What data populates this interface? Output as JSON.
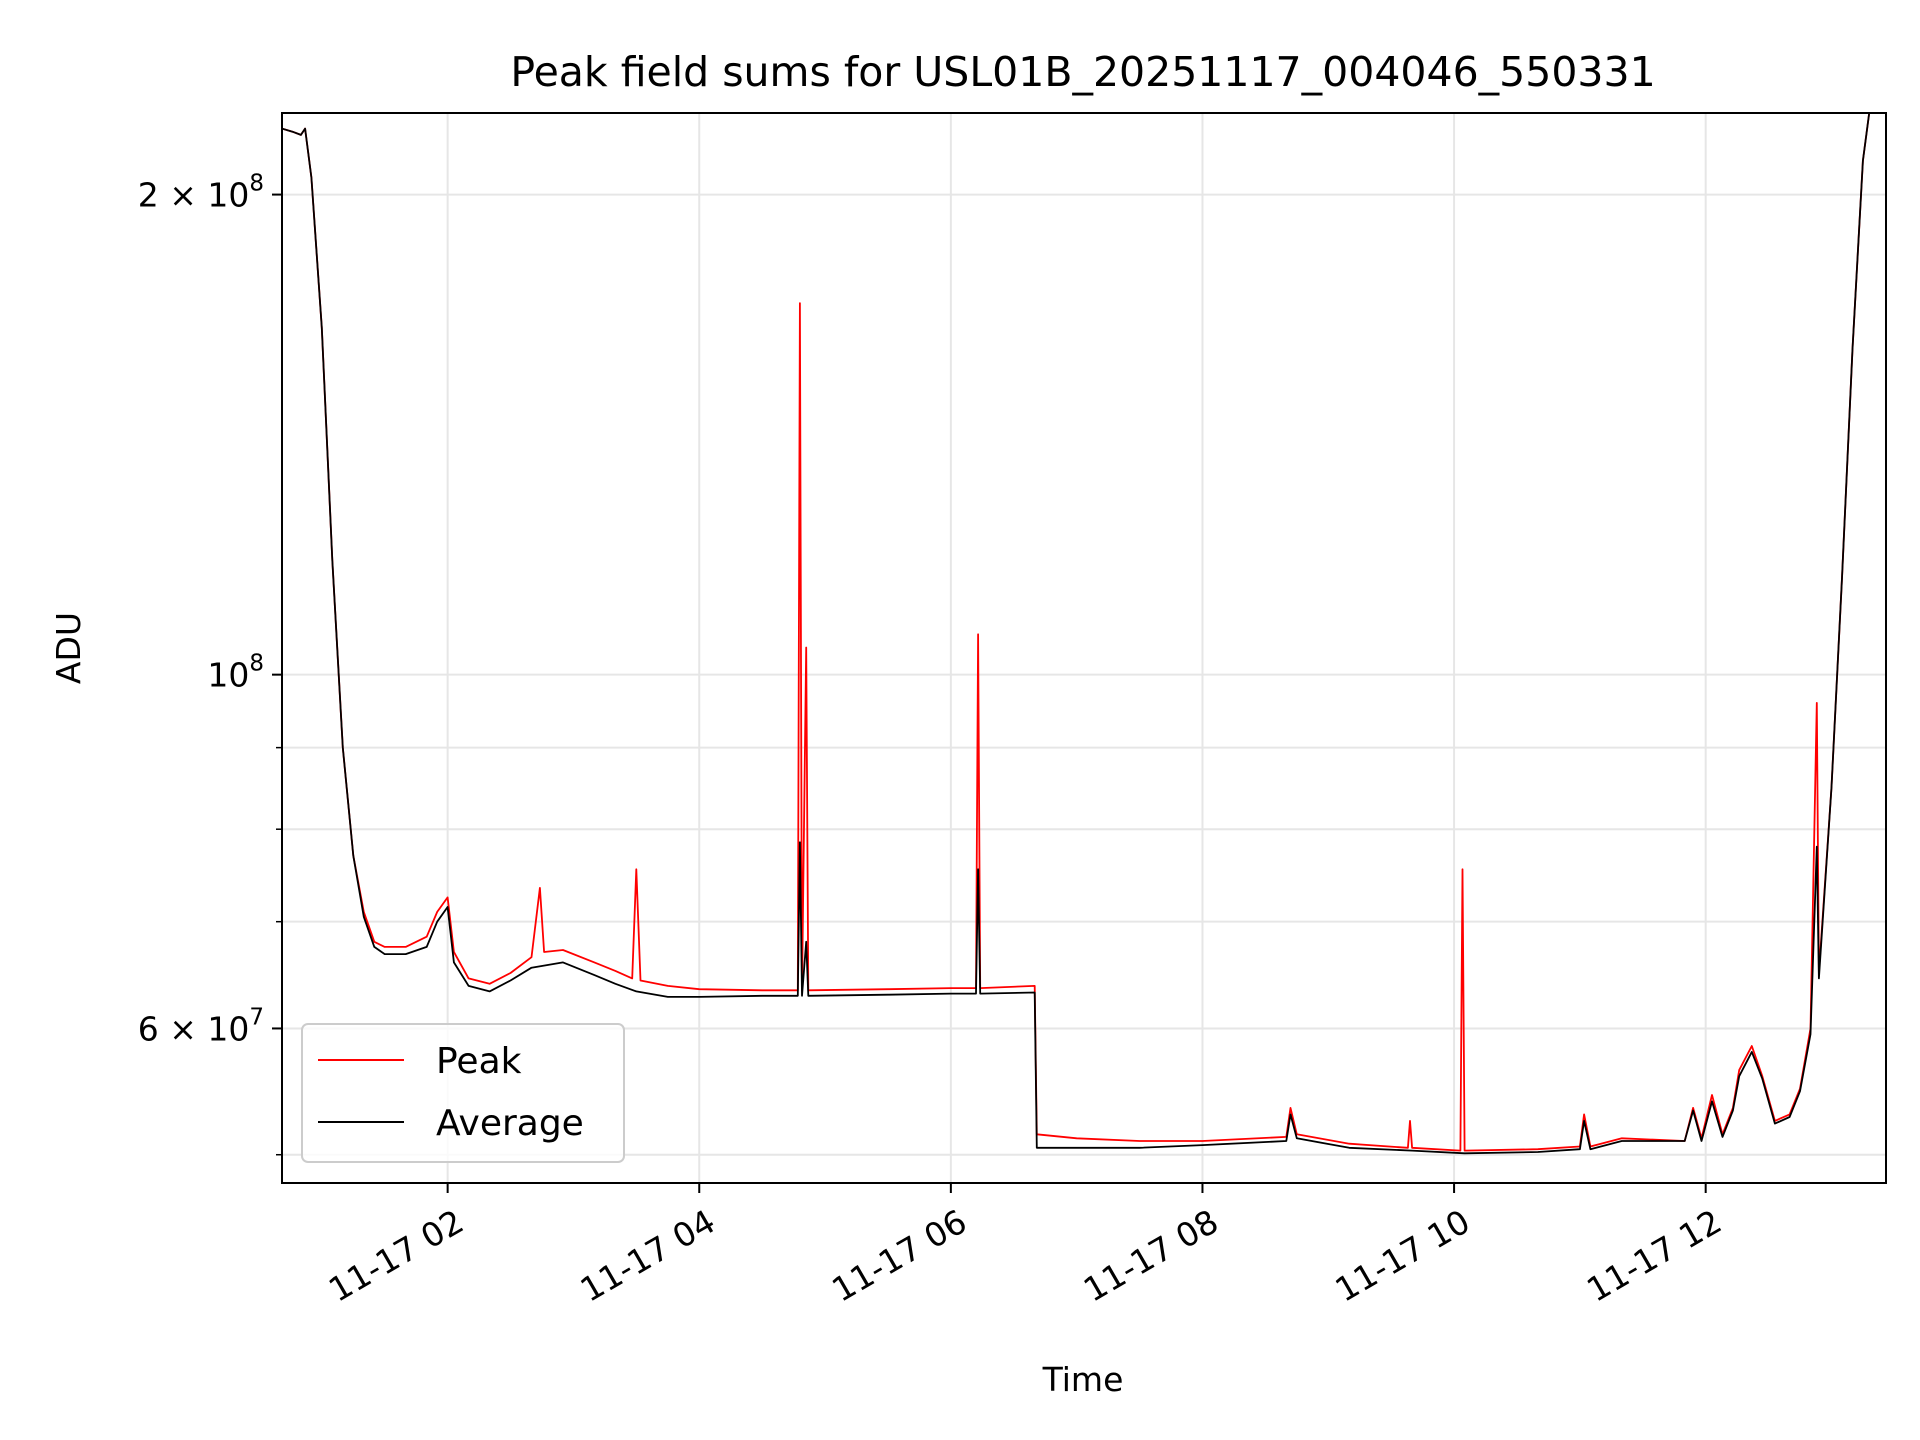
{
  "chart_data": {
    "type": "line",
    "title": "Peak field sums for USL01B_20251117_004046_550331",
    "xlabel": "Time",
    "ylabel": "ADU",
    "y_scale": "log",
    "grid": true,
    "legend_position": "lower-left",
    "xlim": [
      "2025-11-17T00:41",
      "2025-11-17T13:26"
    ],
    "ylim": [
      48000000,
      225000000
    ],
    "x_ticks": [
      {
        "t": "2025-11-17T02:00",
        "label": "11-17 02"
      },
      {
        "t": "2025-11-17T04:00",
        "label": "11-17 04"
      },
      {
        "t": "2025-11-17T06:00",
        "label": "11-17 06"
      },
      {
        "t": "2025-11-17T08:00",
        "label": "11-17 08"
      },
      {
        "t": "2025-11-17T10:00",
        "label": "11-17 10"
      },
      {
        "t": "2025-11-17T12:00",
        "label": "11-17 12"
      }
    ],
    "y_ticks": [
      {
        "v": 60000000,
        "mantissa": "6",
        "exp": "7"
      },
      {
        "v": 100000000,
        "mantissa": "",
        "exp": "8"
      },
      {
        "v": 200000000,
        "mantissa": "2",
        "exp": "8"
      }
    ],
    "y_minor_ticks": [
      50000000,
      70000000,
      80000000,
      90000000
    ],
    "series": [
      {
        "name": "Peak",
        "color": "#ff0000",
        "points": [
          [
            "2025-11-17T00:41",
            220000000
          ],
          [
            "2025-11-17T00:46",
            219000000
          ],
          [
            "2025-11-17T00:50",
            218000000
          ],
          [
            "2025-11-17T00:52",
            220000000
          ],
          [
            "2025-11-17T00:55",
            205000000
          ],
          [
            "2025-11-17T01:00",
            165000000
          ],
          [
            "2025-11-17T01:03",
            135000000
          ],
          [
            "2025-11-17T01:05",
            118000000
          ],
          [
            "2025-11-17T01:10",
            90000000
          ],
          [
            "2025-11-17T01:15",
            77000000
          ],
          [
            "2025-11-17T01:20",
            71000000
          ],
          [
            "2025-11-17T01:25",
            68000000
          ],
          [
            "2025-11-17T01:30",
            67500000
          ],
          [
            "2025-11-17T01:40",
            67500000
          ],
          [
            "2025-11-17T01:50",
            68500000
          ],
          [
            "2025-11-17T01:55",
            71000000
          ],
          [
            "2025-11-17T02:00",
            72500000
          ],
          [
            "2025-11-17T02:03",
            67000000
          ],
          [
            "2025-11-17T02:10",
            64500000
          ],
          [
            "2025-11-17T02:20",
            64000000
          ],
          [
            "2025-11-17T02:30",
            65000000
          ],
          [
            "2025-11-17T02:40",
            66500000
          ],
          [
            "2025-11-17T02:44",
            73500000
          ],
          [
            "2025-11-17T02:46",
            67000000
          ],
          [
            "2025-11-17T02:55",
            67200000
          ],
          [
            "2025-11-17T03:10",
            66000000
          ],
          [
            "2025-11-17T03:20",
            65200000
          ],
          [
            "2025-11-17T03:28",
            64500000
          ],
          [
            "2025-11-17T03:30",
            75500000
          ],
          [
            "2025-11-17T03:32",
            64300000
          ],
          [
            "2025-11-17T03:45",
            63800000
          ],
          [
            "2025-11-17T04:00",
            63500000
          ],
          [
            "2025-11-17T04:30",
            63400000
          ],
          [
            "2025-11-17T04:47",
            63400000
          ],
          [
            "2025-11-17T04:48",
            171000000
          ],
          [
            "2025-11-17T04:49",
            63400000
          ],
          [
            "2025-11-17T04:51",
            104000000
          ],
          [
            "2025-11-17T04:52",
            63400000
          ],
          [
            "2025-11-17T05:30",
            63500000
          ],
          [
            "2025-11-17T06:00",
            63600000
          ],
          [
            "2025-11-17T06:12",
            63600000
          ],
          [
            "2025-11-17T06:13",
            106000000
          ],
          [
            "2025-11-17T06:14",
            63600000
          ],
          [
            "2025-11-17T06:40",
            63800000
          ],
          [
            "2025-11-17T06:41",
            51500000
          ],
          [
            "2025-11-17T07:00",
            51200000
          ],
          [
            "2025-11-17T07:30",
            51000000
          ],
          [
            "2025-11-17T08:00",
            51000000
          ],
          [
            "2025-11-17T08:40",
            51300000
          ],
          [
            "2025-11-17T08:42",
            53500000
          ],
          [
            "2025-11-17T08:45",
            51500000
          ],
          [
            "2025-11-17T09:10",
            50800000
          ],
          [
            "2025-11-17T09:38",
            50500000
          ],
          [
            "2025-11-17T09:39",
            52500000
          ],
          [
            "2025-11-17T09:40",
            50500000
          ],
          [
            "2025-11-17T10:03",
            50300000
          ],
          [
            "2025-11-17T10:04",
            75500000
          ],
          [
            "2025-11-17T10:05",
            50300000
          ],
          [
            "2025-11-17T10:40",
            50400000
          ],
          [
            "2025-11-17T11:00",
            50600000
          ],
          [
            "2025-11-17T11:02",
            53000000
          ],
          [
            "2025-11-17T11:05",
            50600000
          ],
          [
            "2025-11-17T11:20",
            51200000
          ],
          [
            "2025-11-17T11:50",
            51000000
          ],
          [
            "2025-11-17T11:54",
            53500000
          ],
          [
            "2025-11-17T11:58",
            51200000
          ],
          [
            "2025-11-17T12:03",
            54500000
          ],
          [
            "2025-11-17T12:08",
            51500000
          ],
          [
            "2025-11-17T12:13",
            53500000
          ],
          [
            "2025-11-17T12:16",
            56500000
          ],
          [
            "2025-11-17T12:22",
            58500000
          ],
          [
            "2025-11-17T12:27",
            56000000
          ],
          [
            "2025-11-17T12:33",
            52500000
          ],
          [
            "2025-11-17T12:40",
            53000000
          ],
          [
            "2025-11-17T12:45",
            55000000
          ],
          [
            "2025-11-17T12:50",
            60000000
          ],
          [
            "2025-11-17T12:53",
            96000000
          ],
          [
            "2025-11-17T12:54",
            65000000
          ],
          [
            "2025-11-17T13:00",
            85000000
          ],
          [
            "2025-11-17T13:05",
            115000000
          ],
          [
            "2025-11-17T13:10",
            160000000
          ],
          [
            "2025-11-17T13:15",
            210000000
          ],
          [
            "2025-11-17T13:18",
            225000000
          ]
        ]
      },
      {
        "name": "Average",
        "color": "#000000",
        "points": [
          [
            "2025-11-17T00:41",
            220000000
          ],
          [
            "2025-11-17T00:46",
            219000000
          ],
          [
            "2025-11-17T00:50",
            218000000
          ],
          [
            "2025-11-17T00:52",
            220000000
          ],
          [
            "2025-11-17T00:55",
            205000000
          ],
          [
            "2025-11-17T01:00",
            165000000
          ],
          [
            "2025-11-17T01:03",
            135000000
          ],
          [
            "2025-11-17T01:05",
            118000000
          ],
          [
            "2025-11-17T01:10",
            90000000
          ],
          [
            "2025-11-17T01:15",
            77000000
          ],
          [
            "2025-11-17T01:20",
            70500000
          ],
          [
            "2025-11-17T01:25",
            67500000
          ],
          [
            "2025-11-17T01:30",
            66800000
          ],
          [
            "2025-11-17T01:40",
            66800000
          ],
          [
            "2025-11-17T01:50",
            67500000
          ],
          [
            "2025-11-17T01:55",
            70000000
          ],
          [
            "2025-11-17T02:00",
            71500000
          ],
          [
            "2025-11-17T02:03",
            66000000
          ],
          [
            "2025-11-17T02:10",
            63800000
          ],
          [
            "2025-11-17T02:20",
            63300000
          ],
          [
            "2025-11-17T02:30",
            64300000
          ],
          [
            "2025-11-17T02:40",
            65500000
          ],
          [
            "2025-11-17T02:55",
            66000000
          ],
          [
            "2025-11-17T03:10",
            64800000
          ],
          [
            "2025-11-17T03:20",
            64000000
          ],
          [
            "2025-11-17T03:30",
            63300000
          ],
          [
            "2025-11-17T03:45",
            62800000
          ],
          [
            "2025-11-17T04:00",
            62800000
          ],
          [
            "2025-11-17T04:30",
            62900000
          ],
          [
            "2025-11-17T04:47",
            62900000
          ],
          [
            "2025-11-17T04:48",
            78500000
          ],
          [
            "2025-11-17T04:49",
            62900000
          ],
          [
            "2025-11-17T04:51",
            68000000
          ],
          [
            "2025-11-17T04:52",
            62900000
          ],
          [
            "2025-11-17T05:30",
            63000000
          ],
          [
            "2025-11-17T06:00",
            63100000
          ],
          [
            "2025-11-17T06:12",
            63100000
          ],
          [
            "2025-11-17T06:13",
            75500000
          ],
          [
            "2025-11-17T06:14",
            63100000
          ],
          [
            "2025-11-17T06:40",
            63200000
          ],
          [
            "2025-11-17T06:41",
            50500000
          ],
          [
            "2025-11-17T07:00",
            50500000
          ],
          [
            "2025-11-17T07:30",
            50500000
          ],
          [
            "2025-11-17T08:00",
            50700000
          ],
          [
            "2025-11-17T08:40",
            51000000
          ],
          [
            "2025-11-17T08:42",
            53000000
          ],
          [
            "2025-11-17T08:45",
            51200000
          ],
          [
            "2025-11-17T09:10",
            50500000
          ],
          [
            "2025-11-17T09:40",
            50300000
          ],
          [
            "2025-11-17T10:05",
            50100000
          ],
          [
            "2025-11-17T10:40",
            50200000
          ],
          [
            "2025-11-17T11:00",
            50400000
          ],
          [
            "2025-11-17T11:02",
            52500000
          ],
          [
            "2025-11-17T11:05",
            50400000
          ],
          [
            "2025-11-17T11:20",
            51000000
          ],
          [
            "2025-11-17T11:50",
            51000000
          ],
          [
            "2025-11-17T11:54",
            53300000
          ],
          [
            "2025-11-17T11:58",
            51000000
          ],
          [
            "2025-11-17T12:03",
            54000000
          ],
          [
            "2025-11-17T12:08",
            51300000
          ],
          [
            "2025-11-17T12:13",
            53300000
          ],
          [
            "2025-11-17T12:16",
            56000000
          ],
          [
            "2025-11-17T12:22",
            58000000
          ],
          [
            "2025-11-17T12:27",
            55800000
          ],
          [
            "2025-11-17T12:33",
            52300000
          ],
          [
            "2025-11-17T12:40",
            52800000
          ],
          [
            "2025-11-17T12:45",
            54800000
          ],
          [
            "2025-11-17T12:50",
            59500000
          ],
          [
            "2025-11-17T12:53",
            78000000
          ],
          [
            "2025-11-17T12:54",
            64500000
          ],
          [
            "2025-11-17T13:00",
            85000000
          ],
          [
            "2025-11-17T13:05",
            115000000
          ],
          [
            "2025-11-17T13:10",
            160000000
          ],
          [
            "2025-11-17T13:15",
            210000000
          ],
          [
            "2025-11-17T13:18",
            225000000
          ]
        ]
      }
    ],
    "legend": [
      {
        "label": "Peak",
        "color": "#ff0000"
      },
      {
        "label": "Average",
        "color": "#000000"
      }
    ]
  }
}
